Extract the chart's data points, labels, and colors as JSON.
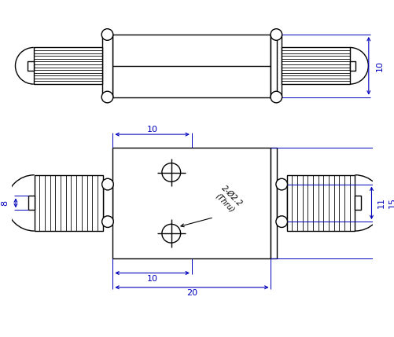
{
  "bg_color": "#ffffff",
  "line_color": "#000000",
  "dim_color": "#0000bb",
  "fig_width": 5.02,
  "fig_height": 4.29,
  "dpi": 100,
  "annotation_text": "2-Ø2.2\n(Thru)"
}
